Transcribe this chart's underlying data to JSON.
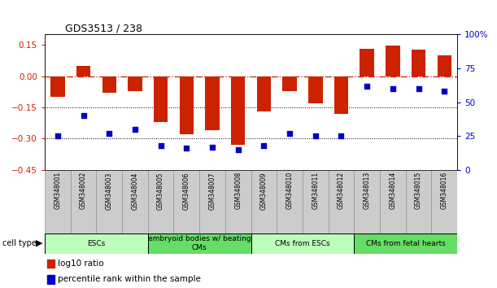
{
  "title": "GDS3513 / 238",
  "samples": [
    "GSM348001",
    "GSM348002",
    "GSM348003",
    "GSM348004",
    "GSM348005",
    "GSM348006",
    "GSM348007",
    "GSM348008",
    "GSM348009",
    "GSM348010",
    "GSM348011",
    "GSM348012",
    "GSM348013",
    "GSM348014",
    "GSM348015",
    "GSM348016"
  ],
  "log10_ratio": [
    -0.1,
    0.05,
    -0.08,
    -0.07,
    -0.22,
    -0.28,
    -0.26,
    -0.33,
    -0.17,
    -0.07,
    -0.13,
    -0.18,
    0.13,
    0.147,
    0.128,
    0.1
  ],
  "percentile_rank": [
    25,
    40,
    27,
    30,
    18,
    16,
    17,
    15,
    18,
    27,
    25,
    25,
    62,
    60,
    60,
    58
  ],
  "cell_type_groups": [
    {
      "label": "ESCs",
      "start": 0,
      "end": 3,
      "color": "#bbffbb"
    },
    {
      "label": "embryoid bodies w/ beating\nCMs",
      "start": 4,
      "end": 7,
      "color": "#66dd66"
    },
    {
      "label": "CMs from ESCs",
      "start": 8,
      "end": 11,
      "color": "#bbffbb"
    },
    {
      "label": "CMs from fetal hearts",
      "start": 12,
      "end": 15,
      "color": "#66dd66"
    }
  ],
  "bar_color": "#cc2200",
  "dot_color": "#0000cc",
  "zeroline_color": "#cc2200",
  "ylim_left": [
    -0.45,
    0.2
  ],
  "ylim_right": [
    0,
    100
  ],
  "yticks_left": [
    -0.45,
    -0.3,
    -0.15,
    0.0,
    0.15
  ],
  "yticks_right": [
    0,
    25,
    50,
    75,
    100
  ],
  "hline_positions": [
    -0.15,
    -0.3
  ],
  "sample_box_color": "#cccccc",
  "legend_items": [
    {
      "color": "#cc2200",
      "label": "log10 ratio"
    },
    {
      "color": "#0000cc",
      "label": "percentile rank within the sample"
    }
  ]
}
